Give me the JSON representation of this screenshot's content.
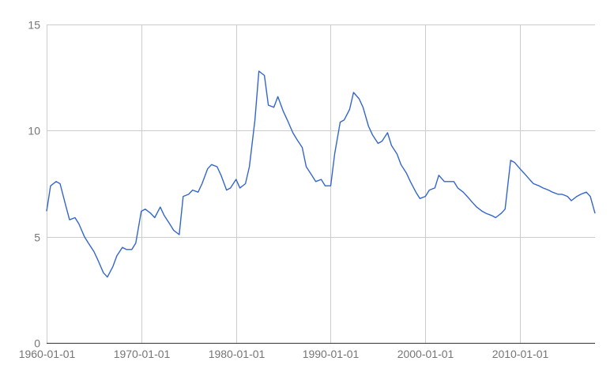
{
  "chart_data": {
    "type": "line",
    "title": "",
    "xlabel": "",
    "ylabel": "",
    "x_range": [
      "1960-01-01",
      "2017-12-01"
    ],
    "ylim": [
      0,
      15
    ],
    "y_ticks": [
      {
        "value": 0,
        "label": "0"
      },
      {
        "value": 5,
        "label": "5"
      },
      {
        "value": 10,
        "label": "10"
      },
      {
        "value": 15,
        "label": "15"
      }
    ],
    "x_ticks": [
      {
        "value": 1960,
        "label": "1960-01-01"
      },
      {
        "value": 1970,
        "label": "1970-01-01"
      },
      {
        "value": 1980,
        "label": "1980-01-01"
      },
      {
        "value": 1990,
        "label": "1990-01-01"
      },
      {
        "value": 2000,
        "label": "2000-01-01"
      },
      {
        "value": 2010,
        "label": "2010-01-01"
      }
    ],
    "grid": true,
    "legend": "none",
    "series": [
      {
        "color": "#3366cc",
        "x": [
          "1960-01",
          "1960-06",
          "1961-01",
          "1961-06",
          "1962-01",
          "1962-06",
          "1963-01",
          "1963-06",
          "1964-01",
          "1964-06",
          "1965-01",
          "1965-06",
          "1966-01",
          "1966-06",
          "1967-01",
          "1967-06",
          "1968-01",
          "1968-06",
          "1969-01",
          "1969-06",
          "1970-01",
          "1970-06",
          "1971-01",
          "1971-06",
          "1972-01",
          "1972-06",
          "1973-01",
          "1973-06",
          "1974-01",
          "1974-06",
          "1975-01",
          "1975-06",
          "1976-01",
          "1976-06",
          "1977-01",
          "1977-06",
          "1978-01",
          "1978-06",
          "1979-01",
          "1979-06",
          "1980-01",
          "1980-06",
          "1981-01",
          "1981-06",
          "1982-01",
          "1982-06",
          "1983-01",
          "1983-06",
          "1984-01",
          "1984-06",
          "1985-01",
          "1985-06",
          "1986-01",
          "1986-06",
          "1987-01",
          "1987-06",
          "1988-01",
          "1988-06",
          "1989-01",
          "1989-06",
          "1990-01",
          "1990-06",
          "1991-01",
          "1991-06",
          "1992-01",
          "1992-06",
          "1993-01",
          "1993-06",
          "1994-01",
          "1994-06",
          "1995-01",
          "1995-06",
          "1996-01",
          "1996-06",
          "1997-01",
          "1997-06",
          "1998-01",
          "1998-06",
          "1999-01",
          "1999-06",
          "2000-01",
          "2000-06",
          "2001-01",
          "2001-06",
          "2002-01",
          "2002-06",
          "2003-01",
          "2003-06",
          "2004-01",
          "2004-06",
          "2005-01",
          "2005-06",
          "2006-01",
          "2006-06",
          "2007-01",
          "2007-06",
          "2008-01",
          "2008-06",
          "2009-01",
          "2009-06",
          "2010-01",
          "2010-06",
          "2011-01",
          "2011-06",
          "2012-01",
          "2012-06",
          "2013-01",
          "2013-06",
          "2014-01",
          "2014-06",
          "2015-01",
          "2015-06",
          "2016-01",
          "2016-06",
          "2017-01",
          "2017-06",
          "2017-12"
        ],
        "values": [
          6.2,
          7.4,
          7.6,
          7.5,
          6.5,
          5.8,
          5.9,
          5.6,
          5.0,
          4.7,
          4.3,
          3.9,
          3.3,
          3.1,
          3.6,
          4.1,
          4.5,
          4.4,
          4.4,
          4.7,
          6.2,
          6.3,
          6.1,
          5.9,
          6.4,
          6.0,
          5.6,
          5.3,
          5.1,
          6.9,
          7.0,
          7.2,
          7.1,
          7.5,
          8.2,
          8.4,
          8.3,
          7.9,
          7.2,
          7.3,
          7.7,
          7.3,
          7.5,
          8.3,
          10.5,
          12.8,
          12.6,
          11.2,
          11.1,
          11.6,
          10.9,
          10.5,
          9.9,
          9.6,
          9.2,
          8.3,
          7.9,
          7.6,
          7.7,
          7.4,
          7.4,
          8.9,
          10.4,
          10.5,
          11.0,
          11.8,
          11.5,
          11.1,
          10.2,
          9.8,
          9.4,
          9.5,
          9.9,
          9.3,
          8.9,
          8.4,
          8.0,
          7.6,
          7.1,
          6.8,
          6.9,
          7.2,
          7.3,
          7.9,
          7.6,
          7.6,
          7.6,
          7.3,
          7.1,
          6.9,
          6.6,
          6.4,
          6.2,
          6.1,
          6.0,
          5.9,
          6.1,
          6.3,
          8.6,
          8.5,
          8.2,
          8.0,
          7.7,
          7.5,
          7.4,
          7.3,
          7.2,
          7.1,
          7.0,
          7.0,
          6.9,
          6.7,
          6.9,
          7.0,
          7.1,
          6.9,
          6.1
        ]
      }
    ]
  }
}
